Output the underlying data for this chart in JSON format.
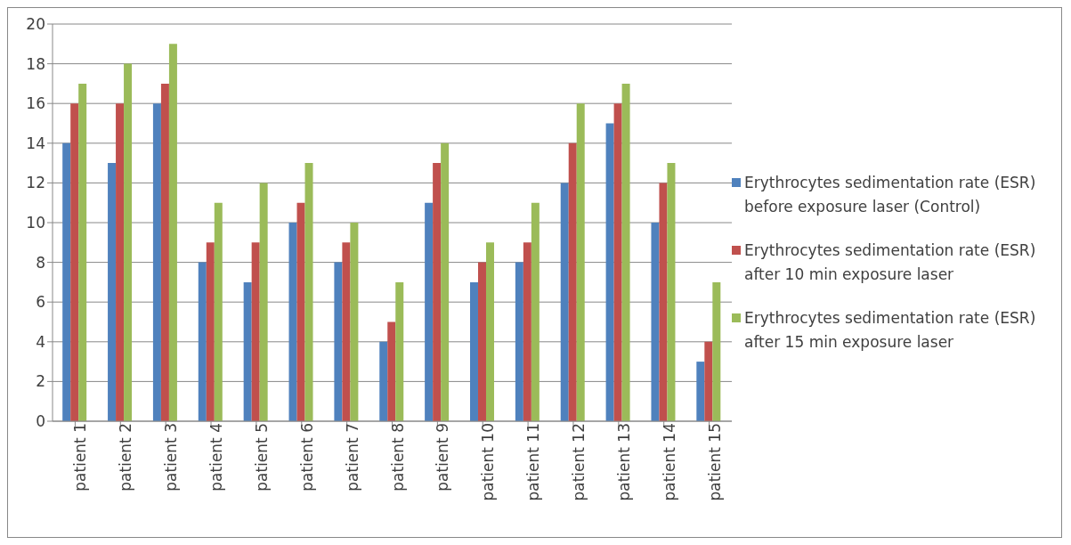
{
  "chart_data": {
    "type": "bar",
    "categories": [
      "patient 1",
      "patient 2",
      "patient 3",
      "patient 4",
      "patient 5",
      "patient 6",
      "patient 7",
      "patient 8",
      "patient 9",
      "patient 10",
      "patient 11",
      "patient 12",
      "patient 13",
      "patient 14",
      "patient 15"
    ],
    "series": [
      {
        "name": "Erythrocytes sedimentation rate (ESR) before exposure laser (Control)",
        "color": "#4f81bd",
        "values": [
          14,
          13,
          16,
          8,
          7,
          10,
          8,
          4,
          11,
          7,
          8,
          12,
          15,
          10,
          3
        ]
      },
      {
        "name": "Erythrocytes sedimentation rate (ESR) after 10 min exposure laser",
        "color": "#c0504d",
        "values": [
          16,
          16,
          17,
          9,
          9,
          11,
          9,
          5,
          13,
          8,
          9,
          14,
          16,
          12,
          4
        ]
      },
      {
        "name": "Erythrocytes sedimentation rate (ESR) after 15 min exposure laser",
        "color": "#9bbb59",
        "values": [
          17,
          18,
          19,
          11,
          12,
          13,
          10,
          7,
          14,
          9,
          11,
          16,
          17,
          13,
          7
        ]
      }
    ],
    "ylim": [
      0,
      20
    ],
    "yticks": [
      0,
      2,
      4,
      6,
      8,
      10,
      12,
      14,
      16,
      18,
      20
    ],
    "grid": "y",
    "legend": "right"
  }
}
